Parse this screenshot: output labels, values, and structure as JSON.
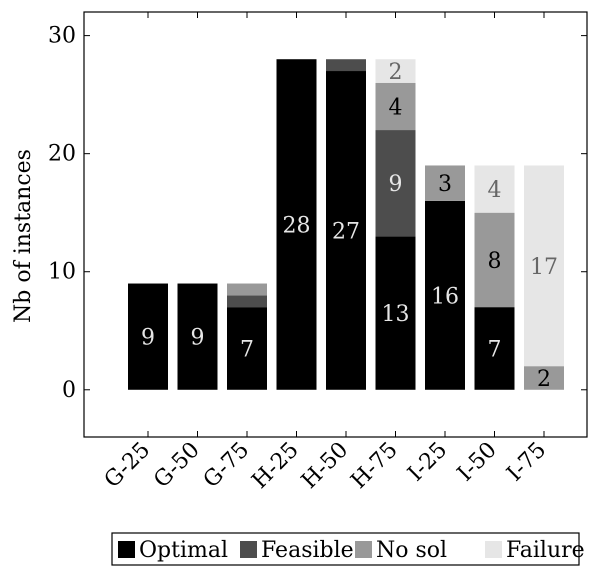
{
  "chart_data": {
    "type": "bar",
    "stacked": true,
    "categories": [
      "G-25",
      "G-50",
      "G-75",
      "H-25",
      "H-50",
      "H-75",
      "I-25",
      "I-50",
      "I-75"
    ],
    "series": [
      {
        "name": "Optimal",
        "color": "#000000",
        "values": [
          9,
          9,
          7,
          28,
          27,
          13,
          16,
          7,
          0
        ]
      },
      {
        "name": "Feasible",
        "color": "#4d4d4d",
        "values": [
          0,
          0,
          1,
          0,
          1,
          9,
          0,
          0,
          0
        ]
      },
      {
        "name": "No sol",
        "color": "#999999",
        "values": [
          0,
          0,
          1,
          0,
          0,
          4,
          3,
          8,
          2
        ]
      },
      {
        "name": "Failure",
        "color": "#e6e6e6",
        "values": [
          0,
          0,
          0,
          0,
          0,
          2,
          0,
          4,
          17
        ]
      }
    ],
    "data_labels": [
      {
        "category": "G-25",
        "series": "Optimal",
        "text": "9"
      },
      {
        "category": "G-50",
        "series": "Optimal",
        "text": "9"
      },
      {
        "category": "G-75",
        "series": "Optimal",
        "text": "7"
      },
      {
        "category": "H-25",
        "series": "Optimal",
        "text": "28"
      },
      {
        "category": "H-50",
        "series": "Optimal",
        "text": "27"
      },
      {
        "category": "H-75",
        "series": "Optimal",
        "text": "13"
      },
      {
        "category": "H-75",
        "series": "Feasible",
        "text": "9"
      },
      {
        "category": "H-75",
        "series": "No sol",
        "text": "4"
      },
      {
        "category": "H-75",
        "series": "Failure",
        "text": "2"
      },
      {
        "category": "I-25",
        "series": "Optimal",
        "text": "16"
      },
      {
        "category": "I-25",
        "series": "No sol",
        "text": "3"
      },
      {
        "category": "I-50",
        "series": "Optimal",
        "text": "7"
      },
      {
        "category": "I-50",
        "series": "No sol",
        "text": "8"
      },
      {
        "category": "I-50",
        "series": "Failure",
        "text": "4"
      },
      {
        "category": "I-75",
        "series": "No sol",
        "text": "2"
      },
      {
        "category": "I-75",
        "series": "Failure",
        "text": "17"
      }
    ],
    "title": "",
    "xlabel": "",
    "ylabel": "Nb of instances",
    "ylim": [
      -4,
      32
    ],
    "yticks": [
      0,
      10,
      20,
      30
    ],
    "grid": false,
    "legend_position": "bottom"
  }
}
